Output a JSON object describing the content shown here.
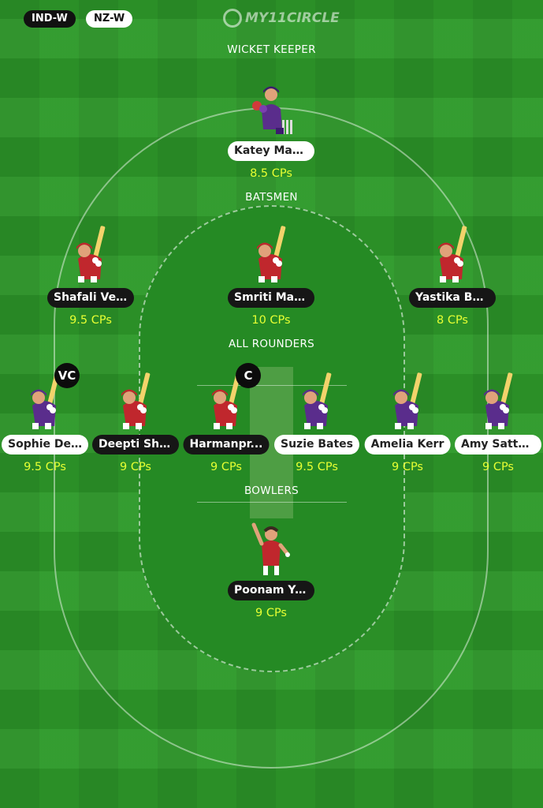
{
  "header": {
    "team_home": "IND-W",
    "team_away": "NZ-W",
    "logo_text": "MY11CIRCLE"
  },
  "sections": {
    "wicket_keeper": "WICKET KEEPER",
    "batsmen": "BATSMEN",
    "all_rounders": "ALL ROUNDERS",
    "bowlers": "BOWLERS"
  },
  "players": {
    "wk": [
      {
        "name": "Katey Martin",
        "points": "8.5 CPs",
        "team": "NZ-W",
        "badge": ""
      }
    ],
    "bat": [
      {
        "name": "Shafali Verma",
        "points": "9.5 CPs",
        "team": "IND-W",
        "badge": ""
      },
      {
        "name": "Smriti Mandhana",
        "points": "10 CPs",
        "team": "IND-W",
        "badge": ""
      },
      {
        "name": "Yastika Bhatia",
        "points": "8 CPs",
        "team": "IND-W",
        "badge": ""
      }
    ],
    "ar": [
      {
        "name": "Sophie Dev...",
        "points": "9.5 CPs",
        "team": "NZ-W",
        "badge": "VC"
      },
      {
        "name": "Deepti Sha...",
        "points": "9 CPs",
        "team": "IND-W",
        "badge": ""
      },
      {
        "name": "Harmanpr...",
        "points": "9 CPs",
        "team": "IND-W",
        "badge": "C"
      },
      {
        "name": "Suzie Bates",
        "points": "9.5 CPs",
        "team": "NZ-W",
        "badge": ""
      },
      {
        "name": "Amelia Kerr",
        "points": "9 CPs",
        "team": "NZ-W",
        "badge": ""
      },
      {
        "name": "Amy Satter...",
        "points": "9 CPs",
        "team": "NZ-W",
        "badge": ""
      }
    ],
    "bowl": [
      {
        "name": "Poonam Yadav",
        "points": "9 CPs",
        "team": "IND-W",
        "badge": ""
      }
    ]
  },
  "colors": {
    "ind_jersey": "#c0272d",
    "nz_jersey": "#5a2d8c",
    "points_text": "#e6ff33",
    "field": "#2e9a2a"
  },
  "icons": {
    "keeper": "wicketkeeper-icon",
    "batter": "batter-icon",
    "bowler": "bowler-icon"
  }
}
